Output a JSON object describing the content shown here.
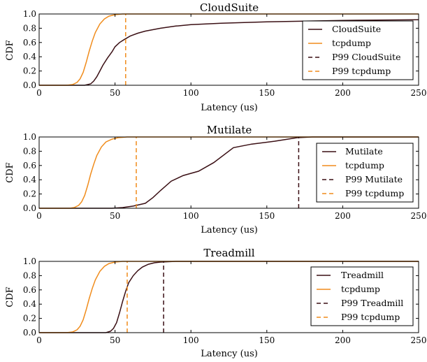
{
  "chart_data": [
    {
      "type": "line",
      "title": "CloudSuite",
      "xlabel": "Latency (us)",
      "ylabel": "CDF",
      "xlim": [
        0,
        250
      ],
      "ylim": [
        0,
        1
      ],
      "x_ticks": [
        "0",
        "50",
        "100",
        "150",
        "200",
        "250"
      ],
      "y_ticks": [
        "0.0",
        "0.2",
        "0.4",
        "0.6",
        "0.8",
        "1.0"
      ],
      "legend_position": "right",
      "series": [
        {
          "name": "CloudSuite",
          "color": "#3a0f14",
          "style": "solid",
          "x": [
            0,
            30,
            34,
            36,
            38,
            40,
            42,
            45,
            48,
            50,
            53,
            56,
            60,
            65,
            70,
            80,
            90,
            100,
            120,
            150,
            200,
            250
          ],
          "y": [
            0,
            0,
            0.02,
            0.06,
            0.12,
            0.2,
            0.28,
            0.38,
            0.47,
            0.54,
            0.6,
            0.64,
            0.69,
            0.73,
            0.76,
            0.8,
            0.83,
            0.85,
            0.87,
            0.89,
            0.91,
            0.92
          ]
        },
        {
          "name": "tcpdump",
          "color": "#f08c1c",
          "style": "solid",
          "x": [
            0,
            18,
            22,
            25,
            27,
            29,
            31,
            33,
            35,
            37,
            40,
            43,
            46,
            50,
            55,
            60,
            250
          ],
          "y": [
            0,
            0,
            0.01,
            0.04,
            0.09,
            0.18,
            0.32,
            0.48,
            0.62,
            0.74,
            0.86,
            0.93,
            0.97,
            0.99,
            1,
            1,
            1
          ]
        },
        {
          "name": "P99 CloudSuite",
          "color": "#3a0f14",
          "style": "dashed",
          "x": [],
          "y": []
        },
        {
          "name": "P99 tcpdump",
          "color": "#f08c1c",
          "style": "dashed",
          "x": [
            57,
            57
          ],
          "y": [
            0,
            1
          ]
        }
      ]
    },
    {
      "type": "line",
      "title": "Mutilate",
      "xlabel": "Latency (us)",
      "ylabel": "CDF",
      "xlim": [
        0,
        250
      ],
      "ylim": [
        0,
        1
      ],
      "x_ticks": [
        "0",
        "50",
        "100",
        "150",
        "200",
        "250"
      ],
      "y_ticks": [
        "0.0",
        "0.2",
        "0.4",
        "0.6",
        "0.8",
        "1.0"
      ],
      "legend_position": "right",
      "series": [
        {
          "name": "Mutilate",
          "color": "#3a0f14",
          "style": "solid",
          "x": [
            0,
            48,
            55,
            62,
            70,
            75,
            80,
            87,
            95,
            105,
            115,
            128,
            140,
            155,
            170,
            180,
            250
          ],
          "y": [
            0,
            0,
            0.01,
            0.03,
            0.07,
            0.15,
            0.25,
            0.38,
            0.46,
            0.52,
            0.64,
            0.85,
            0.9,
            0.94,
            0.99,
            1,
            1
          ]
        },
        {
          "name": "tcpdump",
          "color": "#f08c1c",
          "style": "solid",
          "x": [
            0,
            20,
            23,
            26,
            28,
            30,
            32,
            34,
            36,
            38,
            41,
            44,
            48,
            52,
            58,
            65,
            250
          ],
          "y": [
            0,
            0,
            0.01,
            0.04,
            0.09,
            0.18,
            0.32,
            0.48,
            0.62,
            0.74,
            0.86,
            0.93,
            0.97,
            0.99,
            1,
            1,
            1
          ]
        },
        {
          "name": "P99 Mutilate",
          "color": "#3a0f14",
          "style": "dashed",
          "x": [
            171,
            171
          ],
          "y": [
            0,
            1
          ]
        },
        {
          "name": "P99 tcpdump",
          "color": "#f08c1c",
          "style": "dashed",
          "x": [
            64,
            64
          ],
          "y": [
            0,
            1
          ]
        }
      ]
    },
    {
      "type": "line",
      "title": "Treadmill",
      "xlabel": "Latency (us)",
      "ylabel": "CDF",
      "xlim": [
        0,
        250
      ],
      "ylim": [
        0,
        1
      ],
      "x_ticks": [
        "0",
        "50",
        "100",
        "150",
        "200",
        "250"
      ],
      "y_ticks": [
        "0.0",
        "0.2",
        "0.4",
        "0.6",
        "0.8",
        "1.0"
      ],
      "legend_position": "right",
      "series": [
        {
          "name": "Treadmill",
          "color": "#3a0f14",
          "style": "solid",
          "x": [
            0,
            44,
            47,
            49,
            51,
            53,
            55,
            57,
            59,
            62,
            65,
            68,
            72,
            76,
            80,
            90,
            250
          ],
          "y": [
            0,
            0,
            0.02,
            0.06,
            0.14,
            0.28,
            0.44,
            0.58,
            0.7,
            0.8,
            0.87,
            0.92,
            0.96,
            0.98,
            0.99,
            1,
            1
          ]
        },
        {
          "name": "tcpdump",
          "color": "#f08c1c",
          "style": "solid",
          "x": [
            0,
            18,
            22,
            25,
            27,
            29,
            31,
            33,
            35,
            37,
            40,
            43,
            46,
            50,
            55,
            60,
            250
          ],
          "y": [
            0,
            0,
            0.01,
            0.04,
            0.09,
            0.18,
            0.32,
            0.48,
            0.62,
            0.74,
            0.86,
            0.93,
            0.97,
            0.99,
            1,
            1,
            1
          ]
        },
        {
          "name": "P99 Treadmill",
          "color": "#3a0f14",
          "style": "dashed",
          "x": [
            82,
            82
          ],
          "y": [
            0,
            1
          ]
        },
        {
          "name": "P99 tcpdump",
          "color": "#f08c1c",
          "style": "dashed",
          "x": [
            58,
            58
          ],
          "y": [
            0,
            1
          ]
        }
      ]
    }
  ]
}
